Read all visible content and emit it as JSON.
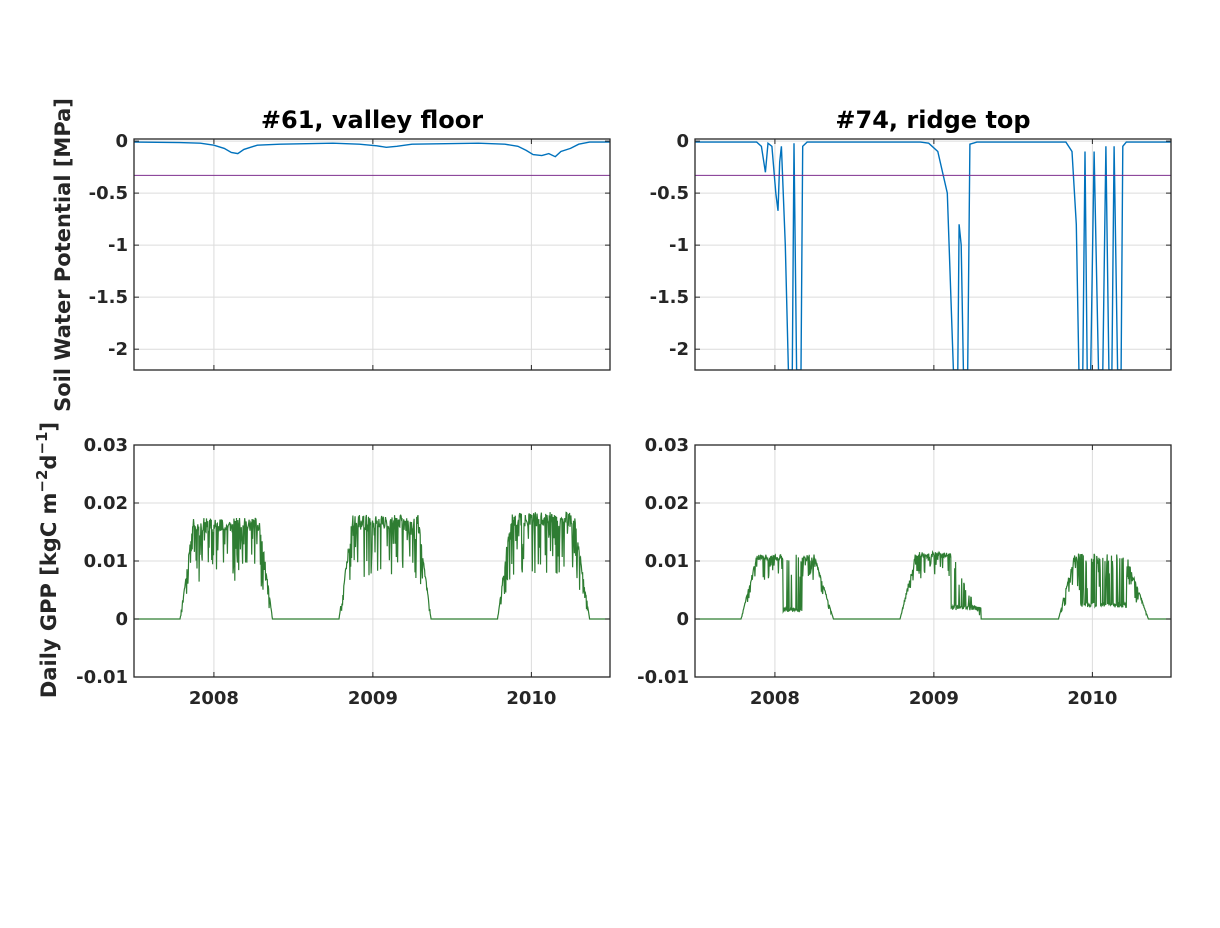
{
  "y_label_top": "Soil Water Potential [MPa]",
  "y_label_bottom": {
    "base": "Daily GPP [kgC m",
    "sup1": "−2",
    "mid": "d",
    "sup2": "−1",
    "end": "]"
  },
  "colors": {
    "swp": "#0072BD",
    "threshold": "#7E2F8E",
    "gpp": "#2E7D32",
    "grid": "#dcdcdc",
    "axis": "#262626"
  },
  "chart_data": [
    {
      "panel": "top-left",
      "type": "line",
      "title": "#61, valley floor",
      "xlim": [
        "2007-07-01",
        "2010-07-01"
      ],
      "ylim": [
        -2.2,
        0.02
      ],
      "yticks": [
        0,
        -0.5,
        -1,
        -1.5,
        -2
      ],
      "ytick_labels": [
        "0",
        "-0.5",
        "-1",
        "-1.5",
        "-2"
      ],
      "xticks": [
        "2008-01-01",
        "2009-01-01",
        "2010-01-01"
      ],
      "xtick_labels": [],
      "grid": true,
      "series": [
        {
          "kind": "swp",
          "points": [
            [
              "2007-07-01",
              -0.01
            ],
            [
              "2007-10-15",
              -0.015
            ],
            [
              "2007-12-01",
              -0.02
            ],
            [
              "2008-01-01",
              -0.04
            ],
            [
              "2008-01-25",
              -0.07
            ],
            [
              "2008-02-10",
              -0.11
            ],
            [
              "2008-02-25",
              -0.12
            ],
            [
              "2008-03-10",
              -0.08
            ],
            [
              "2008-04-10",
              -0.04
            ],
            [
              "2008-06-01",
              -0.03
            ],
            [
              "2008-10-01",
              -0.02
            ],
            [
              "2008-12-01",
              -0.03
            ],
            [
              "2009-01-10",
              -0.045
            ],
            [
              "2009-02-01",
              -0.06
            ],
            [
              "2009-02-25",
              -0.05
            ],
            [
              "2009-04-01",
              -0.03
            ],
            [
              "2009-09-01",
              -0.02
            ],
            [
              "2009-11-01",
              -0.03
            ],
            [
              "2009-12-01",
              -0.05
            ],
            [
              "2009-12-20",
              -0.09
            ],
            [
              "2010-01-05",
              -0.13
            ],
            [
              "2010-01-25",
              -0.14
            ],
            [
              "2010-02-10",
              -0.12
            ],
            [
              "2010-02-25",
              -0.15
            ],
            [
              "2010-03-10",
              -0.1
            ],
            [
              "2010-04-01",
              -0.07
            ],
            [
              "2010-04-20",
              -0.03
            ],
            [
              "2010-05-15",
              -0.01
            ],
            [
              "2010-07-01",
              -0.01
            ]
          ]
        },
        {
          "kind": "threshold",
          "value": -0.33
        }
      ]
    },
    {
      "panel": "top-right",
      "type": "line",
      "title": "#74, ridge top",
      "xlim": [
        "2007-07-01",
        "2010-07-01"
      ],
      "ylim": [
        -2.2,
        0.02
      ],
      "yticks": [
        0,
        -0.5,
        -1,
        -1.5,
        -2
      ],
      "ytick_labels": [
        "0",
        "-0.5",
        "-1",
        "-1.5",
        "-2"
      ],
      "xticks": [
        "2008-01-01",
        "2009-01-01",
        "2010-01-01"
      ],
      "xtick_labels": [],
      "grid": true,
      "series": [
        {
          "kind": "swp",
          "points": [
            [
              "2007-07-01",
              -0.01
            ],
            [
              "2007-11-20",
              -0.01
            ],
            [
              "2007-12-01",
              -0.05
            ],
            [
              "2007-12-10",
              -0.3
            ],
            [
              "2007-12-16",
              -0.02
            ],
            [
              "2007-12-25",
              -0.05
            ],
            [
              "2008-01-03",
              -0.5
            ],
            [
              "2008-01-08",
              -0.67
            ],
            [
              "2008-01-12",
              -0.2
            ],
            [
              "2008-01-16",
              -0.05
            ],
            [
              "2008-01-25",
              -1.0
            ],
            [
              "2008-02-01",
              -2.2
            ],
            [
              "2008-02-10",
              -2.2
            ],
            [
              "2008-02-14",
              -0.02
            ],
            [
              "2008-02-20",
              -2.2
            ],
            [
              "2008-03-01",
              -2.2
            ],
            [
              "2008-03-05",
              -0.05
            ],
            [
              "2008-03-15",
              -0.01
            ],
            [
              "2008-06-01",
              -0.01
            ],
            [
              "2008-12-01",
              -0.01
            ],
            [
              "2008-12-20",
              -0.02
            ],
            [
              "2009-01-10",
              -0.1
            ],
            [
              "2009-02-01",
              -0.5
            ],
            [
              "2009-02-15",
              -2.2
            ],
            [
              "2009-02-25",
              -2.2
            ],
            [
              "2009-02-28",
              -0.8
            ],
            [
              "2009-03-05",
              -1.0
            ],
            [
              "2009-03-10",
              -2.2
            ],
            [
              "2009-03-20",
              -2.2
            ],
            [
              "2009-03-25",
              -0.03
            ],
            [
              "2009-04-10",
              -0.01
            ],
            [
              "2009-11-01",
              -0.01
            ],
            [
              "2009-11-15",
              -0.1
            ],
            [
              "2009-11-25",
              -0.8
            ],
            [
              "2009-12-01",
              -2.2
            ],
            [
              "2009-12-10",
              -2.2
            ],
            [
              "2009-12-15",
              -0.1
            ],
            [
              "2009-12-20",
              -2.2
            ],
            [
              "2009-12-28",
              -2.2
            ],
            [
              "2010-01-05",
              -0.1
            ],
            [
              "2010-01-15",
              -2.2
            ],
            [
              "2010-01-25",
              -2.2
            ],
            [
              "2010-02-01",
              -0.05
            ],
            [
              "2010-02-08",
              -2.2
            ],
            [
              "2010-02-15",
              -2.2
            ],
            [
              "2010-02-20",
              -0.05
            ],
            [
              "2010-02-28",
              -2.2
            ],
            [
              "2010-03-08",
              -2.2
            ],
            [
              "2010-03-12",
              -0.05
            ],
            [
              "2010-03-20",
              -0.01
            ],
            [
              "2010-07-01",
              -0.01
            ]
          ]
        },
        {
          "kind": "threshold",
          "value": -0.33
        }
      ]
    },
    {
      "panel": "bottom-left",
      "type": "line",
      "title": "",
      "xlim": [
        "2007-07-01",
        "2010-07-01"
      ],
      "ylim": [
        -0.01,
        0.03
      ],
      "yticks": [
        0.03,
        0.02,
        0.01,
        0,
        -0.01
      ],
      "ytick_labels": [
        "0.03",
        "0.02",
        "0.01",
        "0",
        "-0.01"
      ],
      "xticks": [
        "2008-01-01",
        "2009-01-01",
        "2010-01-01"
      ],
      "xtick_labels": [
        "2008",
        "2009",
        "2010"
      ],
      "grid": true,
      "series": [
        {
          "kind": "gpp",
          "seasons": [
            {
              "start": "2007-10-15",
              "rise_end": "2007-11-15",
              "fall_start": "2008-04-15",
              "end": "2008-05-15",
              "level": 0.016,
              "variability": 0.006,
              "dips": [],
              "seed": 11
            },
            {
              "start": "2008-10-15",
              "rise_end": "2008-11-15",
              "fall_start": "2009-04-15",
              "end": "2009-05-15",
              "level": 0.0165,
              "variability": 0.006,
              "dips": [],
              "seed": 23
            },
            {
              "start": "2009-10-15",
              "rise_end": "2009-11-15",
              "fall_start": "2010-04-10",
              "end": "2010-05-15",
              "level": 0.017,
              "variability": 0.006,
              "dips": [],
              "seed": 37
            }
          ]
        }
      ]
    },
    {
      "panel": "bottom-right",
      "type": "line",
      "title": "",
      "xlim": [
        "2007-07-01",
        "2010-07-01"
      ],
      "ylim": [
        -0.01,
        0.03
      ],
      "yticks": [
        0.03,
        0.02,
        0.01,
        0,
        -0.01
      ],
      "ytick_labels": [
        "0.03",
        "0.02",
        "0.01",
        "0",
        "-0.01"
      ],
      "xticks": [
        "2008-01-01",
        "2009-01-01",
        "2010-01-01"
      ],
      "xtick_labels": [
        "2008",
        "2009",
        "2010"
      ],
      "grid": true,
      "series": [
        {
          "kind": "gpp",
          "seasons": [
            {
              "start": "2007-10-15",
              "rise_end": "2007-11-20",
              "fall_start": "2008-04-01",
              "end": "2008-05-15",
              "level": 0.0105,
              "variability": 0.0025,
              "dips": [
                [
                  "2008-01-20",
                  "2008-03-05",
                  0.0012
                ]
              ],
              "seed": 41
            },
            {
              "start": "2008-10-15",
              "rise_end": "2008-11-20",
              "fall_start": "2009-02-10",
              "end": "2009-04-20",
              "level": 0.011,
              "variability": 0.0025,
              "dips": [
                [
                  "2009-02-10",
                  "2009-04-20",
                  0.0015
                ]
              ],
              "seed": 53
            },
            {
              "start": "2009-10-15",
              "rise_end": "2009-11-20",
              "fall_start": "2010-03-20",
              "end": "2010-05-10",
              "level": 0.0105,
              "variability": 0.0035,
              "dips": [
                [
                  "2009-12-05",
                  "2010-01-10",
                  0.002
                ],
                [
                  "2010-01-20",
                  "2010-03-20",
                  0.002
                ]
              ],
              "seed": 67
            }
          ]
        }
      ]
    }
  ]
}
